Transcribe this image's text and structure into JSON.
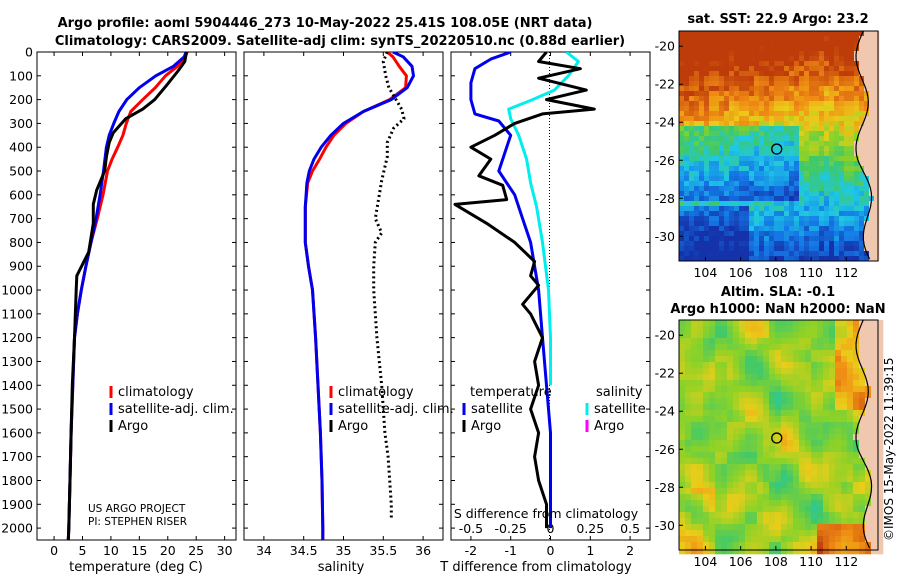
{
  "header": {
    "line1": "Argo profile: aoml 5904446_273 10-May-2022 25.41S 108.05E (NRT data)",
    "line2": "Climatology: CARS2009. Satellite-adj clim: synTS_20220510.nc (0.88d earlier)"
  },
  "credit": {
    "line1": "US ARGO PROJECT",
    "line2": "PI: STEPHEN RISER"
  },
  "timestamp": "©IMOS 15-May-2022 11:39:15",
  "map_sst": {
    "title": "sat. SST: 22.9 Argo: 23.2",
    "xticks": [
      "104",
      "106",
      "108",
      "110",
      "112"
    ],
    "yticks": [
      "-20",
      "-22",
      "-24",
      "-26",
      "-28",
      "-30"
    ],
    "marker": {
      "lon": 108.05,
      "lat": -25.41
    }
  },
  "map_sla": {
    "title1": "Altim. SLA: -0.1",
    "title2": "Argo h1000: NaN h2000: NaN",
    "xticks": [
      "104",
      "106",
      "108",
      "110",
      "112"
    ],
    "yticks": [
      "-20",
      "-22",
      "-24",
      "-26",
      "-28",
      "-30"
    ],
    "marker": {
      "lon": 108.05,
      "lat": -25.41
    }
  },
  "colors": {
    "climatology": "#ff0000",
    "satellite": "#0000ee",
    "argo": "#000000",
    "sat_salinity": "#00eeee",
    "argo_salinity": "#ff00ff"
  },
  "chart_data": [
    {
      "type": "line",
      "name": "temperature",
      "xlabel": "temperature (deg C)",
      "ylabel": "",
      "xlim": [
        -3,
        32
      ],
      "ylim": [
        2050,
        0
      ],
      "xticks": [
        0,
        5,
        10,
        15,
        20,
        25,
        30
      ],
      "yticks": [
        0,
        100,
        200,
        300,
        400,
        500,
        600,
        700,
        800,
        900,
        1000,
        1100,
        1200,
        1300,
        1400,
        1500,
        1600,
        1700,
        1800,
        1900,
        2000
      ],
      "legend": [
        "climatology",
        "satellite-adj. clim.",
        "Argo"
      ],
      "series": [
        {
          "name": "climatology",
          "x": [
            23.4,
            23.1,
            21.7,
            19.6,
            17.8,
            15.6,
            13.5,
            12.7,
            12.1,
            11.2,
            10.2,
            9.4,
            8.6,
            7.6,
            6.5,
            5.6,
            4.8,
            4.1,
            3.6,
            3.3,
            3.0,
            2.8,
            2.6,
            2.5
          ],
          "y": [
            0,
            20,
            60,
            100,
            150,
            200,
            250,
            300,
            350,
            400,
            450,
            500,
            600,
            700,
            800,
            900,
            1000,
            1100,
            1200,
            1400,
            1600,
            1800,
            2000,
            2050
          ]
        },
        {
          "name": "satellite-adj. clim.",
          "x": [
            23.2,
            22.9,
            21.0,
            17.9,
            15.0,
            12.8,
            11.4,
            10.5,
            9.7,
            9.2,
            8.7,
            8.1,
            7.4,
            6.5,
            5.6,
            4.8,
            4.1,
            3.6,
            3.3,
            3.0,
            2.8,
            2.6,
            2.5
          ],
          "y": [
            0,
            20,
            60,
            100,
            150,
            200,
            250,
            300,
            350,
            400,
            500,
            600,
            700,
            800,
            900,
            1000,
            1100,
            1200,
            1400,
            1600,
            1800,
            2000,
            2050
          ]
        },
        {
          "name": "Argo",
          "x": [
            23.3,
            23.0,
            21.8,
            19.8,
            17.7,
            15.6,
            12.6,
            10.4,
            9.7,
            9.2,
            8.9,
            7.5,
            6.9,
            6.9,
            6.1,
            4.0,
            3.9,
            3.6,
            3.2,
            3.0,
            2.8,
            2.6,
            2.5
          ],
          "y": [
            0,
            40,
            80,
            140,
            200,
            240,
            280,
            340,
            380,
            440,
            500,
            580,
            640,
            720,
            840,
            940,
            1000,
            1200,
            1400,
            1600,
            1800,
            2000,
            2050
          ]
        }
      ]
    },
    {
      "type": "line",
      "name": "salinity",
      "xlabel": "salinity",
      "ylabel": "",
      "xlim": [
        33.75,
        36.25
      ],
      "ylim": [
        2050,
        0
      ],
      "xticks": [
        34,
        34.5,
        35,
        35.5,
        36
      ],
      "legend": [
        "climatology",
        "satellite-adj. clim.",
        "Argo"
      ],
      "series": [
        {
          "name": "climatology",
          "x": [
            35.55,
            35.62,
            35.7,
            35.79,
            35.78,
            35.58,
            35.25,
            35.03,
            34.88,
            34.78,
            34.7,
            34.61,
            34.55,
            34.52,
            34.52,
            34.56,
            34.61,
            34.65,
            34.68,
            34.71,
            34.73,
            34.74,
            34.74
          ],
          "y": [
            0,
            20,
            60,
            100,
            150,
            200,
            250,
            300,
            350,
            400,
            450,
            500,
            550,
            650,
            800,
            900,
            1000,
            1200,
            1400,
            1600,
            1800,
            2000,
            2050
          ]
        },
        {
          "name": "satellite-adj. clim.",
          "x": [
            35.62,
            35.75,
            35.86,
            35.88,
            35.8,
            35.6,
            35.25,
            35.0,
            34.84,
            34.72,
            34.63,
            34.57,
            34.54,
            34.52,
            34.52,
            34.56,
            34.61,
            34.65,
            34.68,
            34.71,
            34.73,
            34.74,
            34.74
          ],
          "y": [
            0,
            20,
            60,
            100,
            150,
            200,
            250,
            300,
            350,
            400,
            450,
            500,
            550,
            650,
            800,
            900,
            1000,
            1200,
            1400,
            1600,
            1800,
            2000,
            2050
          ]
        },
        {
          "name": "Argo",
          "x": [
            35.55,
            35.5,
            35.53,
            35.57,
            35.66,
            35.73,
            35.76,
            35.63,
            35.55,
            35.55,
            35.48,
            35.44,
            35.4,
            35.48,
            35.4,
            35.38,
            35.38,
            35.42,
            35.48,
            35.52,
            35.56,
            35.58,
            35.6,
            35.6
          ],
          "y": [
            0,
            40,
            100,
            150,
            200,
            240,
            280,
            320,
            380,
            440,
            540,
            620,
            700,
            760,
            800,
            900,
            1000,
            1200,
            1400,
            1600,
            1700,
            1800,
            1900,
            1960
          ]
        }
      ]
    },
    {
      "type": "line",
      "name": "difference",
      "xlabel": "T difference from climatology",
      "xlabel_top": "S difference from climatology",
      "xlim": [
        -2.5,
        2.5
      ],
      "ylim": [
        2050,
        0
      ],
      "xticks": [
        -2,
        -1,
        0,
        1,
        2
      ],
      "s_ticks": [
        "-0.5",
        "-0.25",
        "0",
        "0.25",
        "0.5"
      ],
      "legend_temperature": {
        "title": "temperature",
        "items": [
          "satellite",
          "Argo"
        ]
      },
      "legend_salinity": {
        "title": "salinity",
        "items": [
          "satellite",
          "Argo"
        ]
      },
      "series": [
        {
          "name": "T satellite",
          "x": [
            -1.0,
            -1.5,
            -1.9,
            -2.0,
            -2.0,
            -1.9,
            -1.3,
            -1.0,
            -1.1,
            -1.3,
            -0.9,
            -0.7,
            -0.5,
            -0.4,
            -0.3,
            -0.2,
            -0.1,
            0,
            0,
            0
          ],
          "y": [
            0,
            30,
            70,
            130,
            200,
            260,
            290,
            350,
            400,
            500,
            600,
            700,
            800,
            900,
            1000,
            1200,
            1400,
            1600,
            1800,
            2000
          ]
        },
        {
          "name": "S satellite",
          "x": [
            0.4,
            0.7,
            0.45,
            0.1,
            -0.45,
            -1.05,
            -1.0,
            -0.8,
            -0.6,
            -0.5,
            -0.35,
            -0.2,
            -0.05,
            0.0,
            0.0
          ],
          "y": [
            0,
            40,
            100,
            160,
            200,
            240,
            280,
            350,
            450,
            550,
            650,
            800,
            1000,
            1200,
            1400
          ]
        },
        {
          "name": "T Argo",
          "x": [
            -0.1,
            -0.3,
            0.75,
            -0.3,
            0.9,
            -0.1,
            1.1,
            -0.2,
            -0.9,
            -1.4,
            -2.0,
            -1.5,
            -1.8,
            -1.2,
            -1.1,
            -2.4,
            -1.6,
            -0.9,
            -0.4,
            -0.5,
            -0.3,
            -0.7,
            -0.5,
            -0.2,
            -0.4,
            -0.3,
            -0.5,
            -0.3,
            -0.4,
            -0.3,
            -0.1,
            -0.1,
            -0.1
          ],
          "y": [
            0,
            40,
            70,
            110,
            160,
            200,
            240,
            260,
            300,
            350,
            400,
            450,
            520,
            560,
            620,
            640,
            720,
            800,
            880,
            940,
            980,
            1060,
            1100,
            1200,
            1300,
            1400,
            1500,
            1600,
            1700,
            1800,
            1900,
            1950,
            2000
          ]
        }
      ]
    }
  ]
}
